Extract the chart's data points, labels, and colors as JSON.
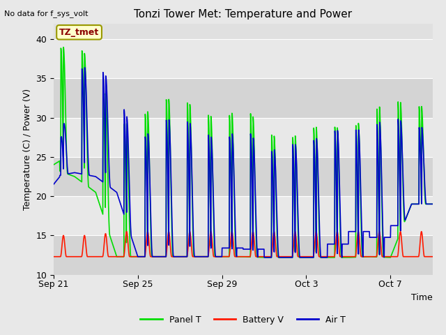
{
  "title": "Tonzi Tower Met: Temperature and Power",
  "ylabel": "Temperature (C) / Power (V)",
  "xlabel": "Time",
  "top_left_text": "No data for f_sys_volt",
  "annotation_box": "TZ_tmet",
  "ylim": [
    10,
    42
  ],
  "yticks": [
    10,
    15,
    20,
    25,
    30,
    35,
    40
  ],
  "xtick_labels": [
    "Sep 21",
    "Sep 25",
    "Sep 29",
    "Oct 3",
    "Oct 7"
  ],
  "xtick_pos": [
    0,
    4,
    8,
    12,
    16
  ],
  "legend_labels": [
    "Panel T",
    "Battery V",
    "Air T"
  ],
  "legend_colors": [
    "#00dd00",
    "#ff1a00",
    "#0000cc"
  ],
  "outer_bg_color": "#e8e8e8",
  "inner_bg_color": "#e0e0e0",
  "stripe_light": "#e8e8e8",
  "stripe_dark": "#d4d4d4",
  "panel_T_color": "#00dd00",
  "battery_V_color": "#ff1a00",
  "air_T_color": "#0000cc",
  "num_days": 18,
  "panel_T_peaks": [
    38.5,
    39.5,
    36.7,
    29.0,
    29.5,
    32.2,
    32.5,
    30.8,
    29.5,
    31.8,
    28.3,
    27.0,
    28.5,
    29.2,
    28.3,
    30.5,
    32.5,
    31.5
  ],
  "panel_T_troughs": [
    23.5,
    22.5,
    20.5,
    12.3,
    12.3,
    12.3,
    12.3,
    12.3,
    12.3,
    12.3,
    12.2,
    12.2,
    12.2,
    12.2,
    12.2,
    12.3,
    12.2,
    19.0
  ],
  "air_T_peaks": [
    23.0,
    35.8,
    37.0,
    33.5,
    26.5,
    29.5,
    30.0,
    28.5,
    26.5,
    29.5,
    25.2,
    26.7,
    26.5,
    28.3,
    28.5,
    28.5,
    30.5,
    28.8
  ],
  "air_T_troughs_night": [
    21.2,
    22.5,
    20.3,
    18.5,
    12.3,
    12.3,
    12.3,
    12.3,
    12.3,
    14.5,
    12.0,
    11.5,
    12.0,
    12.3,
    15.5,
    15.5,
    14.0,
    18.5
  ],
  "air_T_troughs_day": [
    22.5,
    23.0,
    22.5,
    20.5,
    12.3,
    12.3,
    12.3,
    12.3,
    12.3,
    12.3,
    12.2,
    12.2,
    12.2,
    12.2,
    12.2,
    12.3,
    12.2,
    19.0
  ],
  "battery_peaks": [
    15.0,
    15.0,
    15.0,
    15.5,
    15.5,
    15.5,
    15.5,
    15.5,
    15.5,
    15.5,
    15.5,
    15.5,
    15.5,
    15.5,
    15.5,
    15.5,
    15.5,
    15.5
  ],
  "battery_base": 12.3,
  "stripe_ranges": [
    [
      10,
      15
    ],
    [
      15,
      20
    ],
    [
      20,
      25
    ],
    [
      25,
      30
    ],
    [
      30,
      35
    ],
    [
      35,
      40
    ]
  ]
}
